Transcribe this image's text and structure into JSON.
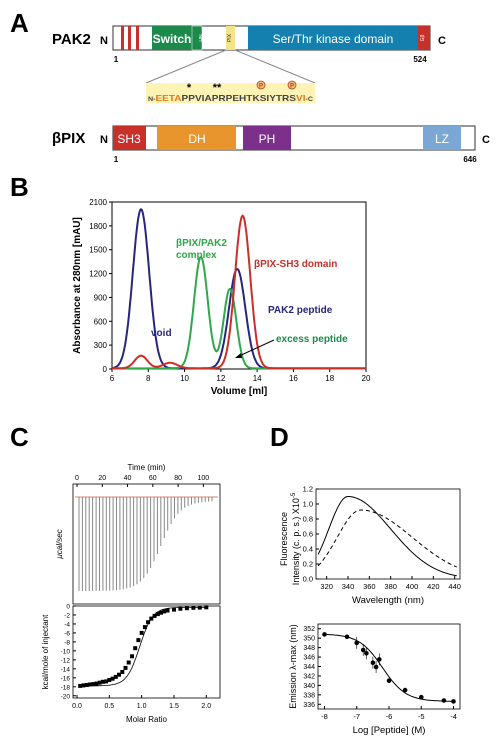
{
  "panels": {
    "a": "A",
    "b": "B",
    "c": "C",
    "d": "D"
  },
  "pak2": {
    "name": "PAK2",
    "n": "N",
    "c": "C",
    "start": "1",
    "end": "524",
    "domains": {
      "switch": "Switch",
      "nh": "NH",
      "pix": "PIX",
      "kinase": "Ser/Thr kinase domain",
      "gb": "Gβ"
    },
    "peptide": {
      "n": "N-",
      "c": "-C",
      "seg1": "EETA",
      "seg2": "PPVIAPRPEHTKSIYTRS",
      "seg3": "VI",
      "star1": "*",
      "star2": "**",
      "p": "P",
      "color_orange": "#e07a1a",
      "color_dark": "#444444",
      "bg": "#fdf3b4"
    }
  },
  "bpix": {
    "name": "βPIX",
    "n": "N",
    "c": "C",
    "start": "1",
    "end": "646",
    "domains": {
      "sh3": "SH3",
      "dh": "DH",
      "ph": "PH",
      "lz": "LZ"
    }
  },
  "colors": {
    "red": "#c8302a",
    "green": "#1b8a4a",
    "blue": "#1380b0",
    "orange": "#e8952e",
    "purple": "#7d2f8c",
    "lightblue": "#7aa7d4",
    "pix_yellow": "#f3e488",
    "navy": "#262680"
  },
  "chart_data": [
    {
      "type": "line",
      "panel": "B",
      "xlabel": "Volume [ml]",
      "ylabel": "Absorbance at 280nm [mAU]",
      "xlim": [
        6,
        20
      ],
      "ylim": [
        0,
        2100
      ],
      "xticks": [
        "6",
        "8",
        "10",
        "12",
        "14",
        "16",
        "18",
        "20"
      ],
      "yticks": [
        "0",
        "300",
        "600",
        "900",
        "1200",
        "1500",
        "1800",
        "2100"
      ],
      "series": [
        {
          "name": "PAK2 peptide",
          "color": "#262680",
          "peaks": [
            [
              7.6,
              2000,
              0.45
            ],
            [
              12.9,
              1250,
              0.45
            ]
          ]
        },
        {
          "name": "βPIX/PAK2 complex",
          "color": "#2ea84a",
          "peaks": [
            [
              10.9,
              1400,
              0.38
            ],
            [
              12.5,
              1000,
              0.35
            ]
          ]
        },
        {
          "name": "βPIX-SH3 domain",
          "color": "#c8302a",
          "peaks": [
            [
              7.6,
              160,
              0.35
            ],
            [
              9.2,
              70,
              0.4
            ],
            [
              13.2,
              1920,
              0.42
            ]
          ]
        }
      ],
      "annotations": {
        "complex": "βPIX/PAK2",
        "complex2": "complex",
        "sh3": "βPIX-SH3 domain",
        "peptide": "PAK2 peptide",
        "void": "void",
        "excess": "excess peptide"
      }
    },
    {
      "type": "line",
      "panel": "C",
      "xlabel_top": "Time (min)",
      "xticks_top": [
        "0",
        "20",
        "40",
        "60",
        "80",
        "100"
      ],
      "ylabel_top": "μcal/sec",
      "xlabel": "Molar Ratio",
      "xticks": [
        "0.0",
        "0.5",
        "1.0",
        "1.5",
        "2.0"
      ],
      "ylabel": "kcal/mole of injectant",
      "yticks": [
        "0",
        "-2",
        "-4",
        "-6",
        "-8",
        "-10",
        "-12",
        "-14",
        "-16",
        "-18",
        "-20"
      ],
      "injections": 40,
      "points": [
        [
          0.05,
          -17.8
        ],
        [
          0.1,
          -17.7
        ],
        [
          0.15,
          -17.6
        ],
        [
          0.2,
          -17.5
        ],
        [
          0.25,
          -17.4
        ],
        [
          0.3,
          -17.3
        ],
        [
          0.35,
          -17.1
        ],
        [
          0.4,
          -16.9
        ],
        [
          0.45,
          -16.8
        ],
        [
          0.5,
          -16.5
        ],
        [
          0.55,
          -16.2
        ],
        [
          0.6,
          -15.8
        ],
        [
          0.65,
          -15.3
        ],
        [
          0.7,
          -14.7
        ],
        [
          0.75,
          -13.8
        ],
        [
          0.8,
          -12.6
        ],
        [
          0.85,
          -11.2
        ],
        [
          0.9,
          -9.4
        ],
        [
          0.95,
          -7.6
        ],
        [
          1.0,
          -6.0
        ],
        [
          1.05,
          -4.7
        ],
        [
          1.1,
          -3.6
        ],
        [
          1.15,
          -2.8
        ],
        [
          1.2,
          -2.2
        ],
        [
          1.25,
          -1.8
        ],
        [
          1.3,
          -1.5
        ],
        [
          1.35,
          -1.2
        ],
        [
          1.4,
          -1.0
        ],
        [
          1.5,
          -0.8
        ],
        [
          1.6,
          -0.6
        ],
        [
          1.7,
          -0.5
        ],
        [
          1.8,
          -0.4
        ],
        [
          1.9,
          -0.35
        ],
        [
          2.0,
          -0.3
        ]
      ]
    },
    {
      "type": "line",
      "panel": "D-top",
      "xlabel": "Wavelength (nm)",
      "ylabel": "Fluorescence Intensity (c. p. s.) X10^-5",
      "ylabel1": "Fluorescence",
      "ylabel2": "Intensity (c. p. s.) X10",
      "ylabel_exp": "-5",
      "xlim": [
        310,
        445
      ],
      "ylim": [
        0.0,
        1.2
      ],
      "xticks": [
        "320",
        "340",
        "360",
        "380",
        "400",
        "420",
        "440"
      ],
      "yticks": [
        "0.0",
        "0.2",
        "0.4",
        "0.6",
        "0.8",
        "1.0",
        "1.2"
      ],
      "series": [
        {
          "name": "solid",
          "peak_x": 340,
          "peak_y": 1.1
        },
        {
          "name": "dashed",
          "peak_x": 352,
          "peak_y": 0.92
        }
      ]
    },
    {
      "type": "scatter",
      "panel": "D-bottom",
      "xlabel": "Log [Peptide] (M)",
      "ylabel": "Emission λ-max (nm)",
      "xlim": [
        -8.2,
        -3.8
      ],
      "ylim": [
        335,
        353
      ],
      "xticks": [
        "-8",
        "-7",
        "-6",
        "-5",
        "-4"
      ],
      "yticks": [
        "336",
        "338",
        "340",
        "342",
        "344",
        "346",
        "348",
        "350",
        "352"
      ],
      "points": [
        [
          -8,
          350.8
        ],
        [
          -7.3,
          350.3
        ],
        [
          -7,
          349
        ],
        [
          -6.8,
          347.5
        ],
        [
          -6.7,
          346.8
        ],
        [
          -6.5,
          344.8
        ],
        [
          -6.4,
          343.9
        ],
        [
          -6.3,
          345.5
        ],
        [
          -6,
          341
        ],
        [
          -5.5,
          339
        ],
        [
          -5,
          337.5
        ],
        [
          -4.3,
          336.8
        ],
        [
          -4,
          336.6
        ]
      ]
    }
  ]
}
